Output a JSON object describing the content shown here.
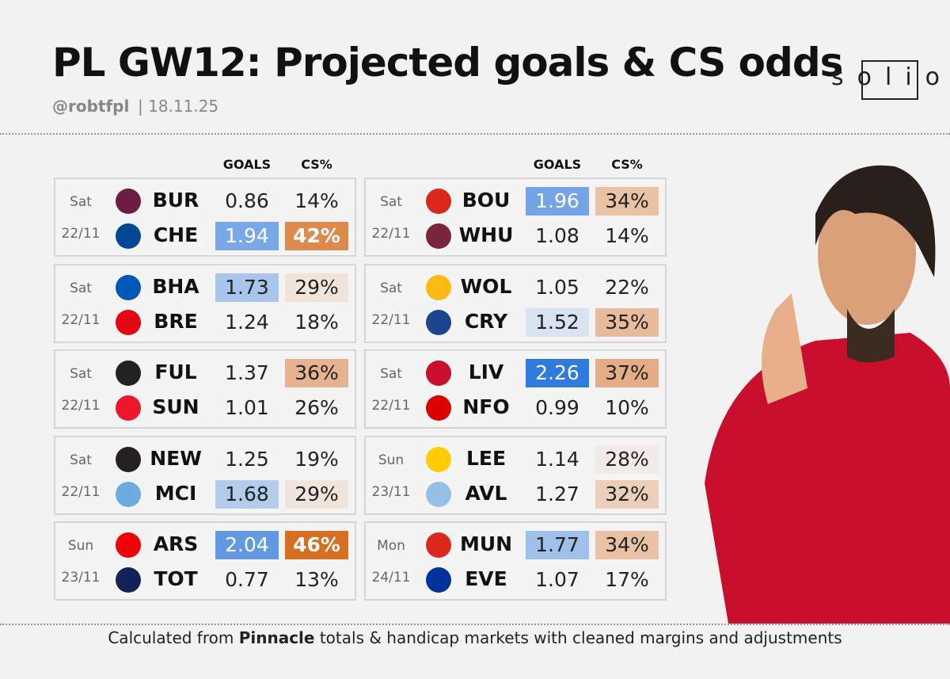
{
  "header": {
    "title": "PL GW12: Projected goals & CS odds",
    "handle": "@robtfpl",
    "date": "| 18.11.25",
    "logo": "solio"
  },
  "columns": [
    "GOALS",
    "CS%"
  ],
  "matches": [
    {
      "day": "Sat",
      "date": "22/11",
      "home": {
        "team": "BUR",
        "goals": "0.86",
        "cs": "14%"
      },
      "away": {
        "team": "CHE",
        "goals": "1.94",
        "cs": "42%"
      }
    },
    {
      "day": "Sat",
      "date": "22/11",
      "home": {
        "team": "BHA",
        "goals": "1.73",
        "cs": "29%"
      },
      "away": {
        "team": "BRE",
        "goals": "1.24",
        "cs": "18%"
      }
    },
    {
      "day": "Sat",
      "date": "22/11",
      "home": {
        "team": "FUL",
        "goals": "1.37",
        "cs": "36%"
      },
      "away": {
        "team": "SUN",
        "goals": "1.01",
        "cs": "26%"
      }
    },
    {
      "day": "Sat",
      "date": "22/11",
      "home": {
        "team": "NEW",
        "goals": "1.25",
        "cs": "19%"
      },
      "away": {
        "team": "MCI",
        "goals": "1.68",
        "cs": "29%"
      }
    },
    {
      "day": "Sun",
      "date": "23/11",
      "home": {
        "team": "ARS",
        "goals": "2.04",
        "cs": "46%"
      },
      "away": {
        "team": "TOT",
        "goals": "0.77",
        "cs": "13%"
      }
    },
    {
      "day": "Sat",
      "date": "22/11",
      "home": {
        "team": "BOU",
        "goals": "1.96",
        "cs": "34%"
      },
      "away": {
        "team": "WHU",
        "goals": "1.08",
        "cs": "14%"
      }
    },
    {
      "day": "Sat",
      "date": "22/11",
      "home": {
        "team": "WOL",
        "goals": "1.05",
        "cs": "22%"
      },
      "away": {
        "team": "CRY",
        "goals": "1.52",
        "cs": "35%"
      }
    },
    {
      "day": "Sat",
      "date": "22/11",
      "home": {
        "team": "LIV",
        "goals": "2.26",
        "cs": "37%"
      },
      "away": {
        "team": "NFO",
        "goals": "0.99",
        "cs": "10%"
      }
    },
    {
      "day": "Sun",
      "date": "23/11",
      "home": {
        "team": "LEE",
        "goals": "1.14",
        "cs": "28%"
      },
      "away": {
        "team": "AVL",
        "goals": "1.27",
        "cs": "32%"
      }
    },
    {
      "day": "Mon",
      "date": "24/11",
      "home": {
        "team": "MUN",
        "goals": "1.77",
        "cs": "34%"
      },
      "away": {
        "team": "EVE",
        "goals": "1.07",
        "cs": "17%"
      }
    }
  ],
  "footer": {
    "pre": "Calculated from",
    "source": "Pinnacle",
    "post": "totals & handicap markets with cleaned margins and adjustments"
  }
}
